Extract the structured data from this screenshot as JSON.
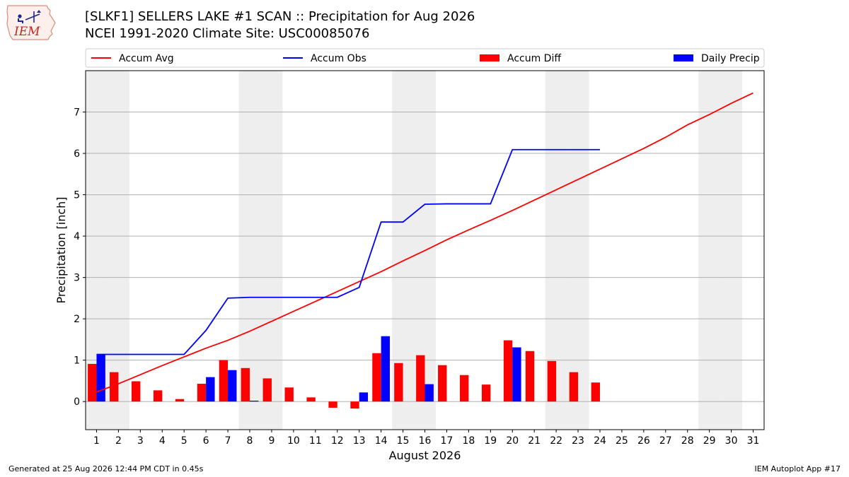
{
  "header": {
    "logo_text": "IEM",
    "title": "[SLKF1] SELLERS LAKE #1 SCAN :: Precipitation for Aug 2026",
    "subtitle": "NCEI 1991-2020 Climate Site: USC00085076"
  },
  "footer": {
    "generated": "Generated at 25 Aug 2026 12:44 PM CDT in 0.45s",
    "app": "IEM Autoplot App #17"
  },
  "colors": {
    "accum_avg": "#ff0000",
    "accum_obs": "#0000ff",
    "accum_diff": "#ff0000",
    "daily_precip": "#0000ff",
    "weekend_band": "#eeeeee",
    "grid": "#b0b0b0"
  },
  "chart_data": {
    "type": "bar",
    "xlabel": "August 2026",
    "ylabel": "Precipitation [inch]",
    "xlim": [
      0.5,
      31.5
    ],
    "ylim": [
      -0.68,
      8.0
    ],
    "grid": true,
    "legend_placement": "top",
    "x_ticks": [
      1,
      2,
      3,
      4,
      5,
      6,
      7,
      8,
      9,
      10,
      11,
      12,
      13,
      14,
      15,
      16,
      17,
      18,
      19,
      20,
      21,
      22,
      23,
      24,
      25,
      26,
      27,
      28,
      29,
      30,
      31
    ],
    "y_ticks": [
      0,
      1,
      2,
      3,
      4,
      5,
      6,
      7
    ],
    "weekend_days": [
      1,
      2,
      8,
      9,
      15,
      16,
      22,
      23,
      29,
      30
    ],
    "legend": [
      {
        "label": "Accum Avg",
        "kind": "line",
        "color": "#ff0000"
      },
      {
        "label": "Accum Obs",
        "kind": "line",
        "color": "#0000ff"
      },
      {
        "label": "Accum Diff",
        "kind": "bar",
        "color": "#ff0000"
      },
      {
        "label": "Daily Precip",
        "kind": "bar",
        "color": "#0000ff"
      }
    ],
    "series": [
      {
        "name": "Accum Avg",
        "kind": "line",
        "x": [
          1,
          2,
          3,
          4,
          5,
          6,
          7,
          8,
          9,
          10,
          11,
          12,
          13,
          14,
          15,
          16,
          17,
          18,
          19,
          20,
          21,
          22,
          23,
          24,
          25,
          26,
          27,
          28,
          29,
          30,
          31
        ],
        "values": [
          0.23,
          0.43,
          0.65,
          0.87,
          1.08,
          1.29,
          1.48,
          1.7,
          1.94,
          2.18,
          2.42,
          2.66,
          2.9,
          3.14,
          3.4,
          3.65,
          3.91,
          4.15,
          4.38,
          4.62,
          4.87,
          5.12,
          5.37,
          5.62,
          5.87,
          6.12,
          6.39,
          6.69,
          6.94,
          7.21,
          7.46
        ]
      },
      {
        "name": "Accum Obs",
        "kind": "line",
        "x": [
          1,
          2,
          3,
          4,
          5,
          6,
          7,
          8,
          9,
          10,
          11,
          12,
          13,
          14,
          15,
          16,
          17,
          18,
          19,
          20,
          21,
          22,
          23,
          24
        ],
        "values": [
          1.14,
          1.14,
          1.14,
          1.14,
          1.14,
          1.72,
          2.5,
          2.52,
          2.52,
          2.52,
          2.52,
          2.52,
          2.76,
          4.34,
          4.34,
          4.77,
          4.78,
          4.78,
          4.78,
          6.09,
          6.09,
          6.09,
          6.09,
          6.09
        ]
      },
      {
        "name": "Accum Diff",
        "kind": "bar",
        "x": [
          1,
          2,
          3,
          4,
          5,
          6,
          7,
          8,
          9,
          10,
          11,
          12,
          13,
          14,
          15,
          16,
          17,
          18,
          19,
          20,
          21,
          22,
          23,
          24
        ],
        "values": [
          0.91,
          0.71,
          0.49,
          0.27,
          0.06,
          0.43,
          1.0,
          0.81,
          0.56,
          0.34,
          0.1,
          -0.15,
          -0.17,
          1.17,
          0.93,
          1.12,
          0.88,
          0.64,
          0.41,
          1.48,
          1.22,
          0.98,
          0.71,
          0.46
        ]
      },
      {
        "name": "Daily Precip",
        "kind": "bar",
        "x": [
          1,
          6,
          7,
          8,
          13,
          14,
          16,
          20
        ],
        "values": [
          1.14,
          0.59,
          0.76,
          0.02,
          0.22,
          1.58,
          0.42,
          1.31
        ]
      }
    ]
  }
}
